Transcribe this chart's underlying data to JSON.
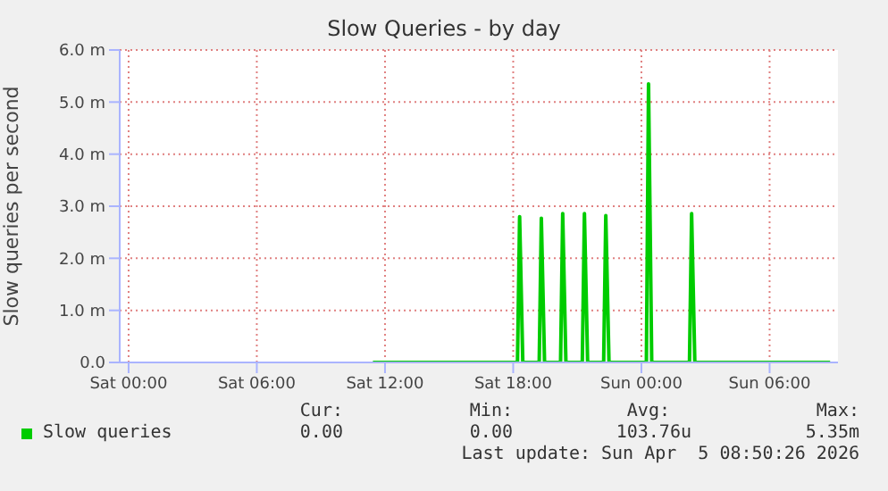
{
  "chart_data": {
    "type": "line",
    "title": "Slow Queries - by day",
    "ylabel": "Slow queries per second",
    "xlim": [
      "2026-04-03T23:35",
      "2026-04-05T09:12"
    ],
    "xticks": [
      {
        "value": "2026-04-04T00:00",
        "label": "Sat 00:00"
      },
      {
        "value": "2026-04-04T06:00",
        "label": "Sat 06:00"
      },
      {
        "value": "2026-04-04T12:00",
        "label": "Sat 12:00"
      },
      {
        "value": "2026-04-04T18:00",
        "label": "Sat 18:00"
      },
      {
        "value": "2026-04-05T00:00",
        "label": "Sun 00:00"
      },
      {
        "value": "2026-04-05T06:00",
        "label": "Sun 06:00"
      }
    ],
    "ylim": [
      0,
      6
    ],
    "yticks": [
      {
        "value": 0,
        "label": "0.0"
      },
      {
        "value": 1,
        "label": "1.0 m"
      },
      {
        "value": 2,
        "label": "2.0 m"
      },
      {
        "value": 3,
        "label": "3.0 m"
      },
      {
        "value": 4,
        "label": "4.0 m"
      },
      {
        "value": 5,
        "label": "5.0 m"
      },
      {
        "value": 6,
        "label": "6.0 m"
      }
    ],
    "grid": true,
    "legend": "bottom",
    "marker": "none",
    "line_style": "solid",
    "series": [
      {
        "name": "Slow queries",
        "color": "#00cc00",
        "x": [
          "2026-04-04T11:26",
          "2026-04-04T18:12",
          "2026-04-04T18:18",
          "2026-04-04T18:27",
          "2026-04-04T19:13",
          "2026-04-04T19:19",
          "2026-04-04T19:28",
          "2026-04-04T20:13",
          "2026-04-04T20:19",
          "2026-04-04T20:28",
          "2026-04-04T21:14",
          "2026-04-04T21:20",
          "2026-04-04T21:29",
          "2026-04-04T22:14",
          "2026-04-04T22:20",
          "2026-04-04T22:29",
          "2026-04-05T00:14",
          "2026-04-05T00:20",
          "2026-04-05T00:29",
          "2026-04-05T02:15",
          "2026-04-05T02:21",
          "2026-04-05T02:30",
          "2026-04-05T08:50"
        ],
        "values": [
          0,
          0,
          2.8,
          0,
          0,
          2.77,
          0,
          0,
          2.86,
          0,
          0,
          2.86,
          0,
          0,
          2.82,
          0,
          0,
          5.35,
          0,
          0,
          2.86,
          0,
          0
        ]
      }
    ],
    "annotations": [
      "Cur:",
      "Min:",
      "Avg:",
      "Max:",
      "0.00",
      "0.00",
      "103.76u",
      "5.35m",
      "Last update: Sun Apr  5 08:50:26 2026"
    ]
  }
}
